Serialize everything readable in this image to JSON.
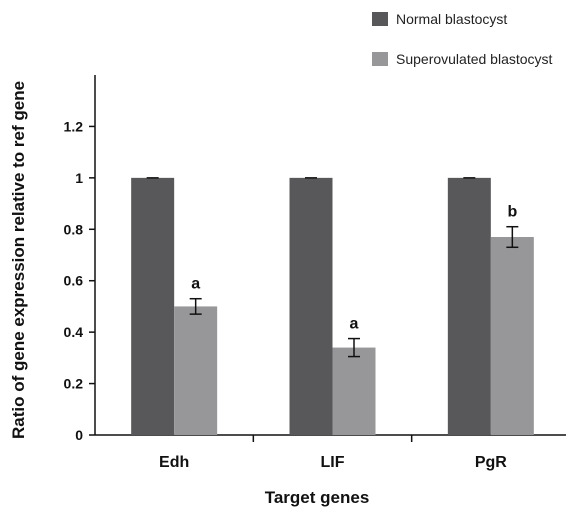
{
  "chart_data": {
    "type": "bar",
    "title": "",
    "xlabel": "Target genes",
    "ylabel": "Ratio of gene expression relative to ref gene",
    "categories": [
      "Edh",
      "LIF",
      "PgR"
    ],
    "ylim": [
      0,
      1.2
    ],
    "yticks": [
      "0",
      "0.2",
      "0.4",
      "0.6",
      "0.8",
      "1",
      "1.2"
    ],
    "ytick_values": [
      0,
      0.2,
      0.4,
      0.6,
      0.8,
      1,
      1.2
    ],
    "grid": false,
    "legend_position": "top-right",
    "series": [
      {
        "name": "Normal blastocyst",
        "color": "#58585a",
        "values": [
          1.0,
          1.0,
          1.0
        ],
        "errors": [
          0.0,
          0.0,
          0.0
        ],
        "labels": [
          "",
          "",
          ""
        ]
      },
      {
        "name": "Superovulated blastocyst",
        "color": "#97979a",
        "values": [
          0.5,
          0.34,
          0.77
        ],
        "errors": [
          0.03,
          0.035,
          0.04
        ],
        "labels": [
          "a",
          "a",
          "b"
        ]
      }
    ]
  }
}
